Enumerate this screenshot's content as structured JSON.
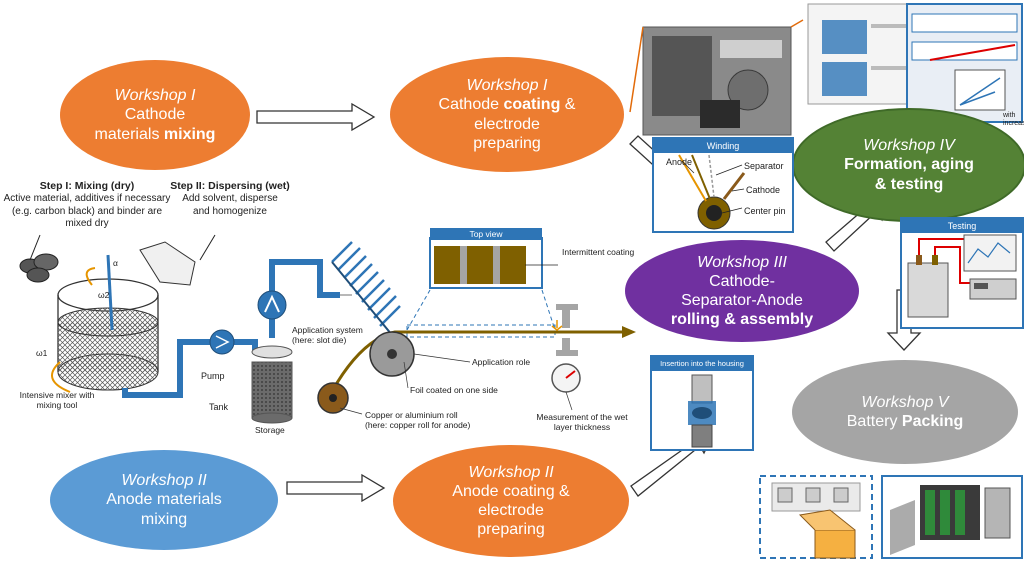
{
  "workshops": {
    "w1_mix": {
      "title": "Workshop I",
      "line1": "Cathode",
      "line2": "materials ",
      "bold": "mixing"
    },
    "w1_coat": {
      "title": "Workshop I",
      "line1": "Cathode ",
      "bold": "coating",
      "line1b": " &",
      "line2": "electrode",
      "line3": "preparing"
    },
    "w2_mix": {
      "title": "Workshop II",
      "line1": "Anode materials",
      "line2": "mixing"
    },
    "w2_coat": {
      "title": "Workshop II",
      "line1": "Anode coating &",
      "line2": "electrode",
      "line3": "preparing"
    },
    "w3": {
      "title": "Workshop III",
      "line1": "Cathode-",
      "line2": "Separator-Anode",
      "bold": "rolling & assembly"
    },
    "w4": {
      "title": "Workshop IV",
      "bold1": "Formation",
      "line1b": ", aging",
      "bold2": "& testing"
    },
    "w5": {
      "title": "Workshop V",
      "line1": "Battery ",
      "bold": "Packing"
    }
  },
  "steps": {
    "s1_head": "Step I: Mixing (dry)",
    "s1_l1": "Active material, additives if necessary",
    "s1_l2": "(e.g. carbon black) and binder are",
    "s1_l3": "mixed dry",
    "s2_head": "Step II: Dispersing (wet)",
    "s2_l1": "Add solvent, disperse",
    "s2_l2": "and homogenize"
  },
  "labels": {
    "mixer_l1": "Intensive mixer with",
    "mixer_l2": "mixing tool",
    "pump": "Pump",
    "tank": "Tank",
    "storage": "Storage",
    "app_sys_l1": "Application system",
    "app_sys_l2": "(here: slot die)",
    "foil": "Foil coated on one side",
    "app_role": "Application role",
    "roll_l1": "Copper or aluminium roll",
    "roll_l2": "(here: copper roll for anode)",
    "wet_l1": "Measurement of the wet",
    "wet_l2": "layer thickness",
    "intermittent": "Intermittent coating",
    "omega1": "ω1",
    "omega2": "ω2",
    "alpha": "α"
  },
  "panels": {
    "top_view": "Top view",
    "winding": "Winding",
    "anode": "Anode",
    "separator": "Separator",
    "cathode": "Cathode",
    "center_pin": "Center pin",
    "testing": "Testing",
    "insertion": "Insertion into the housing",
    "aging_caption": "with increasing"
  },
  "colors": {
    "orange": "#ED7D31",
    "blue": "#5B9BD5",
    "green": "#548235",
    "purple": "#7030A0",
    "grey": "#A5A5A5",
    "panel_border": "#2E75B6",
    "pipe": "#2E75B6"
  }
}
